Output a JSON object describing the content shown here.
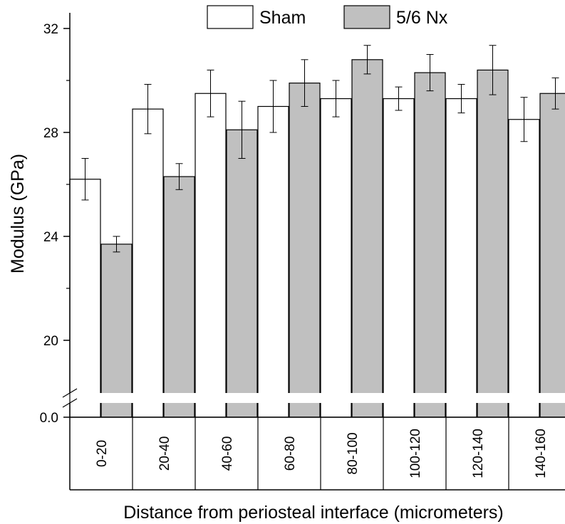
{
  "chart_data": {
    "type": "bar",
    "title": "",
    "xlabel": "Distance from periosteal interface (micrometers)",
    "ylabel": "Modulus (GPa)",
    "categories": [
      "0-20",
      "20-40",
      "40-60",
      "60-80",
      "80-100",
      "100-120",
      "120-140",
      "140-160"
    ],
    "series": [
      {
        "name": "Sham",
        "color": "#ffffff",
        "values": [
          26.2,
          28.9,
          29.5,
          29.0,
          29.3,
          29.3,
          29.3,
          28.5
        ],
        "errors": [
          0.8,
          0.95,
          0.9,
          1.0,
          0.7,
          0.45,
          0.55,
          0.85
        ]
      },
      {
        "name": "5/6 Nx",
        "color": "#c0c0c0",
        "values": [
          23.7,
          26.3,
          28.1,
          29.9,
          30.8,
          30.3,
          30.4,
          29.5
        ],
        "errors": [
          0.3,
          0.5,
          1.1,
          0.9,
          0.55,
          0.7,
          0.95,
          0.6
        ]
      }
    ],
    "yticks": [
      "0.0",
      "20",
      "24",
      "28",
      "32"
    ],
    "ylim": [
      18,
      32.8
    ],
    "axis_break": true,
    "legend": "top"
  }
}
